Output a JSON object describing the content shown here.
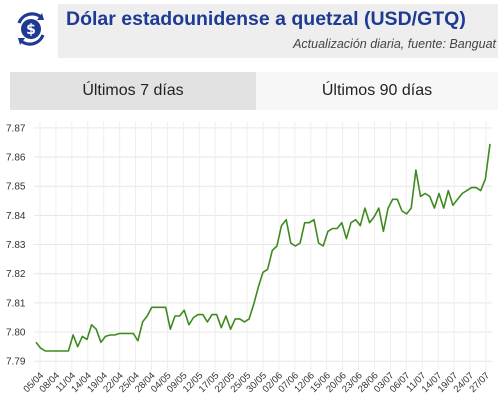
{
  "header": {
    "title": "Dólar estadounidense a quetzal (USD/GTQ)",
    "subtitle": "Actualización diaria, fuente: Banguat",
    "logo_icon": "dollar-exchange-icon",
    "accent_color": "#1f3a93"
  },
  "tabs": [
    {
      "label": "Últimos 7 días",
      "selected": false
    },
    {
      "label": "Últimos 90 días",
      "selected": true
    }
  ],
  "chart_data": {
    "type": "line",
    "title": "",
    "xlabel": "",
    "ylabel": "",
    "ylim": [
      7.787,
      7.872
    ],
    "yticks": [
      "7.87",
      "7.86",
      "7.85",
      "7.84",
      "7.83",
      "7.82",
      "7.81",
      "7.80",
      "7.79"
    ],
    "ytick_values": [
      7.87,
      7.86,
      7.85,
      7.84,
      7.83,
      7.82,
      7.81,
      7.8,
      7.79
    ],
    "xticks": [
      "05/04",
      "08/04",
      "11/04",
      "14/04",
      "19/04",
      "22/04",
      "25/04",
      "28/04",
      "04/05",
      "09/05",
      "12/05",
      "17/05",
      "22/05",
      "25/05",
      "30/05",
      "02/06",
      "07/06",
      "12/06",
      "15/06",
      "20/06",
      "23/06",
      "28/06",
      "03/07",
      "06/07",
      "11/07",
      "14/07",
      "19/07",
      "24/07",
      "27/07"
    ],
    "grid": true,
    "line_color": "#3f8a1f",
    "series": [
      {
        "values": [
          7.7965,
          7.7945,
          7.7935,
          7.7935,
          7.7935,
          7.7935,
          7.7935,
          7.7935,
          7.799,
          7.795,
          7.7985,
          7.7975,
          7.8025,
          7.801,
          7.7965,
          7.7985,
          7.799,
          7.799,
          7.7995,
          7.7995,
          7.7995,
          7.7995,
          7.797,
          7.8035,
          7.8055,
          7.8085,
          7.8085,
          7.8085,
          7.8085,
          7.801,
          7.8055,
          7.8055,
          7.8075,
          7.8025,
          7.805,
          7.806,
          7.806,
          7.8035,
          7.806,
          7.806,
          7.8015,
          7.8055,
          7.801,
          7.8045,
          7.8045,
          7.8035,
          7.8045,
          7.8095,
          7.8155,
          7.8205,
          7.8215,
          7.828,
          7.8295,
          7.8365,
          7.8385,
          7.8305,
          7.8295,
          7.8305,
          7.8375,
          7.8375,
          7.8385,
          7.8305,
          7.8295,
          7.8345,
          7.8355,
          7.8355,
          7.8375,
          7.832,
          7.8375,
          7.8385,
          7.8365,
          7.8425,
          7.8375,
          7.8395,
          7.8425,
          7.8345,
          7.8425,
          7.8455,
          7.8455,
          7.8415,
          7.8405,
          7.8425,
          7.8555,
          7.8465,
          7.8475,
          7.8465,
          7.8425,
          7.8475,
          7.8425,
          7.8485,
          7.8435,
          7.8455,
          7.8475,
          7.8485,
          7.8495,
          7.8495,
          7.8485,
          7.8525,
          7.8645
        ]
      }
    ]
  }
}
